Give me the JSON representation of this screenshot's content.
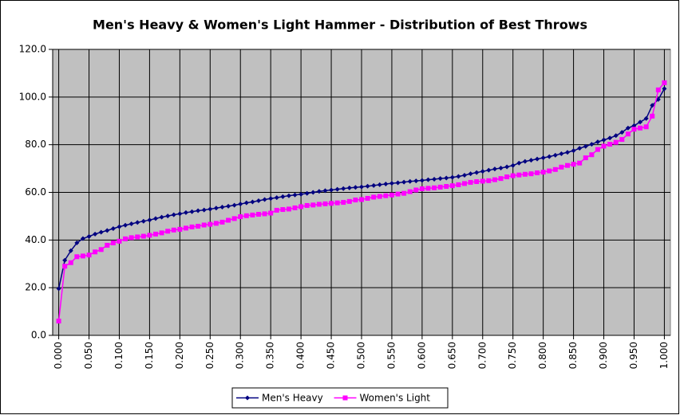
{
  "chart_data": {
    "type": "line",
    "title": "Men's Heavy & Women's Light Hammer - Distribution of Best Throws",
    "x": [
      0,
      0.01,
      0.02,
      0.03,
      0.04,
      0.05,
      0.06,
      0.07,
      0.08,
      0.09,
      0.1,
      0.11,
      0.12,
      0.13,
      0.14,
      0.15,
      0.16,
      0.17,
      0.18,
      0.19,
      0.2,
      0.21,
      0.22,
      0.23,
      0.24,
      0.25,
      0.26,
      0.27,
      0.28,
      0.29,
      0.3,
      0.31,
      0.32,
      0.33,
      0.34,
      0.35,
      0.36,
      0.37,
      0.38,
      0.39,
      0.4,
      0.41,
      0.42,
      0.43,
      0.44,
      0.45,
      0.46,
      0.47,
      0.48,
      0.49,
      0.5,
      0.51,
      0.52,
      0.53,
      0.54,
      0.55,
      0.56,
      0.57,
      0.58,
      0.59,
      0.6,
      0.61,
      0.62,
      0.63,
      0.64,
      0.65,
      0.66,
      0.67,
      0.68,
      0.69,
      0.7,
      0.71,
      0.72,
      0.73,
      0.74,
      0.75,
      0.76,
      0.77,
      0.78,
      0.79,
      0.8,
      0.81,
      0.82,
      0.83,
      0.84,
      0.85,
      0.86,
      0.87,
      0.88,
      0.89,
      0.9,
      0.91,
      0.92,
      0.93,
      0.94,
      0.95,
      0.96,
      0.97,
      0.98,
      0.99,
      1
    ],
    "series": [
      {
        "name": "Men's Heavy",
        "color": "#000080",
        "marker": "diamond",
        "values": [
          19.6,
          31.5,
          35.5,
          38.8,
          40.6,
          41.5,
          42.5,
          43.3,
          44.0,
          44.8,
          45.6,
          46.2,
          46.8,
          47.4,
          47.9,
          48.4,
          49.0,
          49.6,
          50.1,
          50.6,
          51.0,
          51.5,
          51.9,
          52.3,
          52.6,
          53.0,
          53.4,
          53.8,
          54.2,
          54.6,
          55.1,
          55.6,
          56.0,
          56.5,
          57.0,
          57.4,
          57.8,
          58.2,
          58.6,
          58.9,
          59.2,
          59.6,
          60.0,
          60.4,
          60.7,
          61.0,
          61.3,
          61.6,
          61.9,
          62.1,
          62.3,
          62.6,
          62.9,
          63.2,
          63.5,
          63.8,
          64.0,
          64.3,
          64.6,
          64.8,
          65.0,
          65.3,
          65.5,
          65.8,
          66.0,
          66.3,
          66.7,
          67.2,
          67.8,
          68.3,
          68.8,
          69.3,
          69.8,
          70.2,
          70.7,
          71.3,
          72.3,
          73.0,
          73.5,
          74.0,
          74.5,
          75.0,
          75.6,
          76.2,
          76.8,
          77.5,
          78.5,
          79.3,
          80.2,
          81.2,
          82.0,
          82.8,
          83.8,
          85.2,
          87.0,
          88.0,
          89.5,
          91.0,
          96.5,
          99.0,
          103.5
        ]
      },
      {
        "name": "Women's Light",
        "color": "#ff00ff",
        "marker": "square",
        "values": [
          6.0,
          29.0,
          30.5,
          33.0,
          33.3,
          33.7,
          35.0,
          36.0,
          37.8,
          38.8,
          39.5,
          40.5,
          41.0,
          41.3,
          41.6,
          42.0,
          42.5,
          43.0,
          43.7,
          44.2,
          44.5,
          45.0,
          45.5,
          45.8,
          46.3,
          46.6,
          47.0,
          47.5,
          48.3,
          49.0,
          49.8,
          50.2,
          50.5,
          50.8,
          51.0,
          51.3,
          52.5,
          52.8,
          53.0,
          53.5,
          54.0,
          54.5,
          54.7,
          55.0,
          55.2,
          55.4,
          55.6,
          55.8,
          56.2,
          56.8,
          57.0,
          57.5,
          58.0,
          58.3,
          58.6,
          58.9,
          59.3,
          59.6,
          60.3,
          61.0,
          61.5,
          61.7,
          61.9,
          62.2,
          62.5,
          62.8,
          63.2,
          63.7,
          64.2,
          64.5,
          64.7,
          64.9,
          65.3,
          65.8,
          66.5,
          67.0,
          67.3,
          67.6,
          67.8,
          68.2,
          68.5,
          69.0,
          69.6,
          70.6,
          71.3,
          71.8,
          72.3,
          74.5,
          75.8,
          78.0,
          79.4,
          80.2,
          81.0,
          82.2,
          84.5,
          86.5,
          87.0,
          87.5,
          92.0,
          103.0,
          106.0
        ]
      }
    ],
    "xlim": [
      -0.01,
      1.01
    ],
    "xticks": [
      {
        "value": 0,
        "label": "0.000"
      },
      {
        "value": 0.05,
        "label": "0.050"
      },
      {
        "value": 0.1,
        "label": "0.100"
      },
      {
        "value": 0.15,
        "label": "0.150"
      },
      {
        "value": 0.2,
        "label": "0.200"
      },
      {
        "value": 0.25,
        "label": "0.250"
      },
      {
        "value": 0.3,
        "label": "0.300"
      },
      {
        "value": 0.35,
        "label": "0.350"
      },
      {
        "value": 0.4,
        "label": "0.400"
      },
      {
        "value": 0.45,
        "label": "0.450"
      },
      {
        "value": 0.5,
        "label": "0.500"
      },
      {
        "value": 0.55,
        "label": "0.550"
      },
      {
        "value": 0.6,
        "label": "0.600"
      },
      {
        "value": 0.65,
        "label": "0.650"
      },
      {
        "value": 0.7,
        "label": "0.700"
      },
      {
        "value": 0.75,
        "label": "0.750"
      },
      {
        "value": 0.8,
        "label": "0.800"
      },
      {
        "value": 0.85,
        "label": "0.850"
      },
      {
        "value": 0.9,
        "label": "0.900"
      },
      {
        "value": 0.95,
        "label": "0.950"
      },
      {
        "value": 1,
        "label": "1.000"
      }
    ],
    "ylim": [
      0,
      120
    ],
    "yticks": [
      {
        "value": 0,
        "label": "0.0"
      },
      {
        "value": 20,
        "label": "20.0"
      },
      {
        "value": 40,
        "label": "40.0"
      },
      {
        "value": 60,
        "label": "60.0"
      },
      {
        "value": 80,
        "label": "80.0"
      },
      {
        "value": 100,
        "label": "100.0"
      },
      {
        "value": 120,
        "label": "120.0"
      }
    ],
    "grid": true,
    "legend": "bottom",
    "plot_background": "#c0c0c0"
  }
}
